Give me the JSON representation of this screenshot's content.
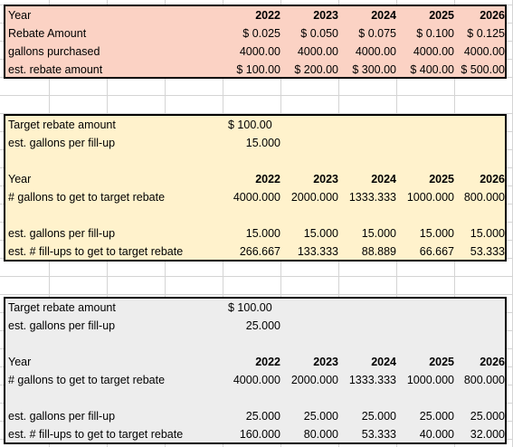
{
  "years": [
    "2022",
    "2023",
    "2024",
    "2025",
    "2026"
  ],
  "section1": {
    "rows": [
      {
        "label": "Year",
        "values": [
          "2022",
          "2023",
          "2024",
          "2025",
          "2026"
        ],
        "bold": true
      },
      {
        "label": "Rebate Amount",
        "values": [
          "$  0.025",
          "$  0.050",
          "$  0.075",
          "$  0.100",
          "$  0.125"
        ]
      },
      {
        "label": "gallons purchased",
        "values": [
          "4000.00",
          "4000.00",
          "4000.00",
          "4000.00",
          "4000.00"
        ]
      },
      {
        "label": "est. rebate amount",
        "values": [
          "$ 100.00",
          "$ 200.00",
          "$ 300.00",
          "$ 400.00",
          "$ 500.00"
        ]
      }
    ]
  },
  "section2": {
    "target_label": "Target rebate amount",
    "target_value": "$ 100.00",
    "gallons_label": "est. gallons per fill-up",
    "gallons_value": "15.000",
    "year_label": "Year",
    "years": [
      "2022",
      "2023",
      "2024",
      "2025",
      "2026"
    ],
    "gallons_needed_label": "# gallons to get to target rebate",
    "gallons_needed": [
      "4000.000",
      "2000.000",
      "1333.333",
      "1000.000",
      "800.000"
    ],
    "per_fillup_label": "est. gallons per fill-up",
    "per_fillup": [
      "15.000",
      "15.000",
      "15.000",
      "15.000",
      "15.000"
    ],
    "fillups_label": "est. # fill-ups to get to target rebate",
    "fillups": [
      "266.667",
      "133.333",
      "88.889",
      "66.667",
      "53.333"
    ]
  },
  "section3": {
    "target_label": "Target rebate amount",
    "target_value": "$ 100.00",
    "gallons_label": "est. gallons per fill-up",
    "gallons_value": "25.000",
    "year_label": "Year",
    "years": [
      "2022",
      "2023",
      "2024",
      "2025",
      "2026"
    ],
    "gallons_needed_label": "# gallons to get to target rebate",
    "gallons_needed": [
      "4000.000",
      "2000.000",
      "1333.333",
      "1000.000",
      "800.000"
    ],
    "per_fillup_label": "est. gallons per fill-up",
    "per_fillup": [
      "25.000",
      "25.000",
      "25.000",
      "25.000",
      "25.000"
    ],
    "fillups_label": "est. # fill-ups to get to target rebate",
    "fillups": [
      "160.000",
      "80.000",
      "53.333",
      "40.000",
      "32.000"
    ]
  }
}
